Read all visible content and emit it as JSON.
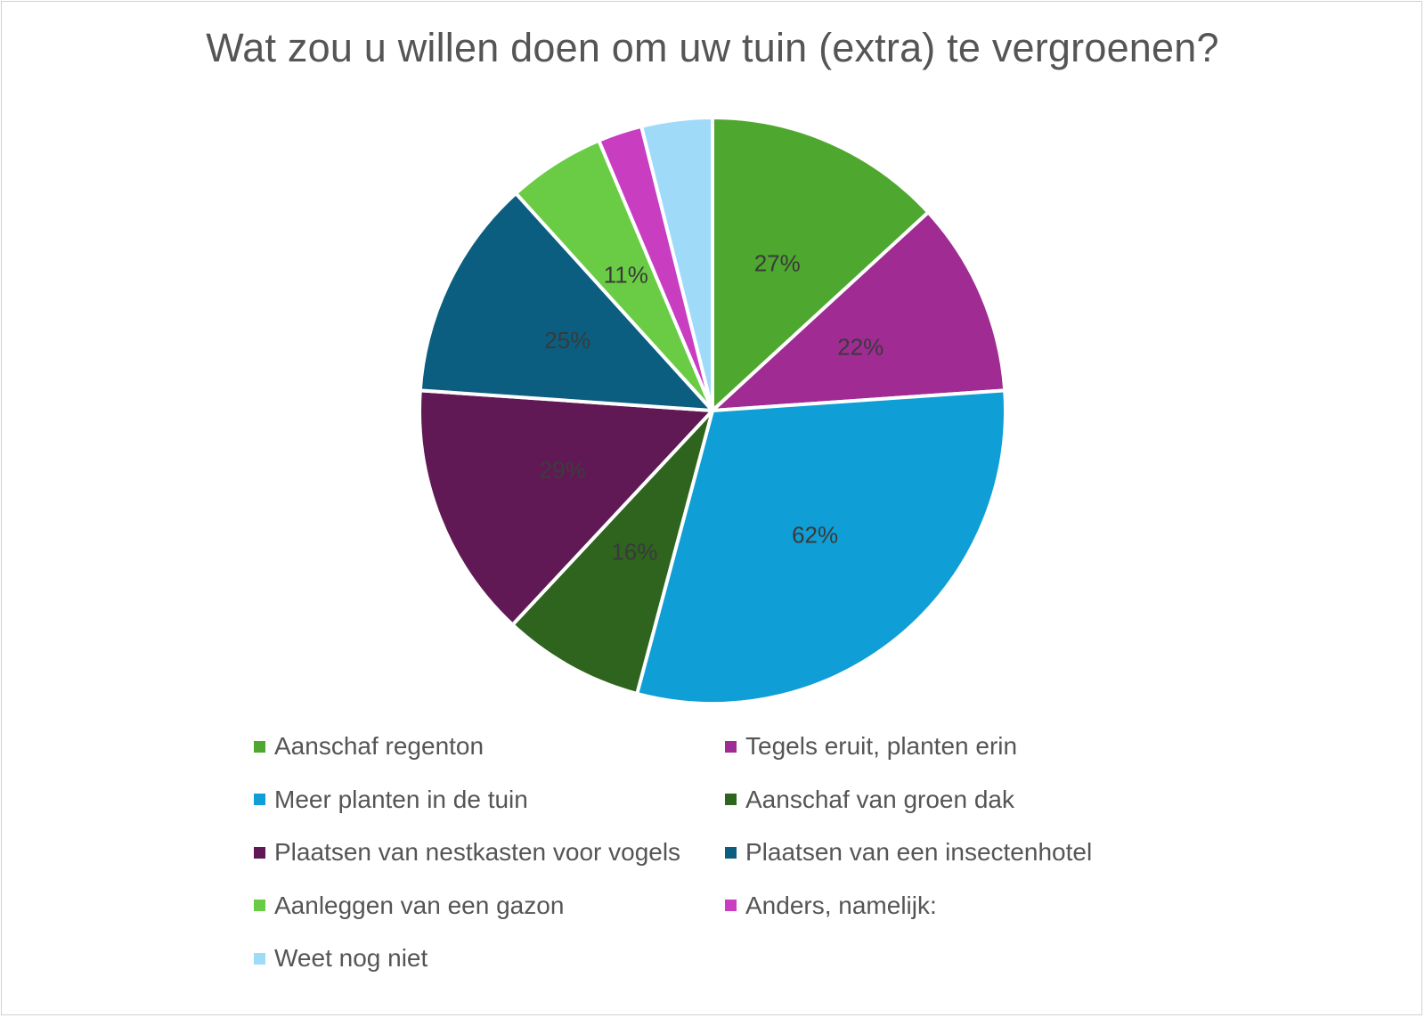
{
  "chart_data": {
    "type": "pie",
    "title": "Wat zou u willen doen om uw tuin (extra) te vergroenen?",
    "categories": [
      "Aanschaf regenton",
      "Tegels eruit, planten erin",
      "Meer planten in de tuin",
      "Aanschaf van groen dak",
      "Plaatsen van nestkasten voor vogels",
      "Plaatsen van een insectenhotel",
      "Aanleggen van een gazon",
      "Anders, namelijk:",
      "Weet nog niet"
    ],
    "values": [
      27,
      22,
      62,
      16,
      29,
      25,
      11,
      5,
      8
    ],
    "data_labels": [
      "27%",
      "22%",
      "62%",
      "16%",
      "29%",
      "25%",
      "11%",
      "",
      ""
    ],
    "colors": [
      "#4ea72e",
      "#a02b93",
      "#0f9ed5",
      "#2e641e",
      "#601954",
      "#0b5e80",
      "#6acc45",
      "#c93ec0",
      "#9fdbf8"
    ],
    "label_colors": [
      "#3a3a3a",
      "#3a3a3a",
      "#3a3a3a",
      "#3a3a3a",
      "#3c3c3c",
      "#3a3a3a",
      "#3a3a3a",
      "#3a3a3a",
      "#3a3a3a"
    ],
    "legend_position": "bottom",
    "start_angle": "12 o'clock",
    "direction": "clockwise"
  }
}
